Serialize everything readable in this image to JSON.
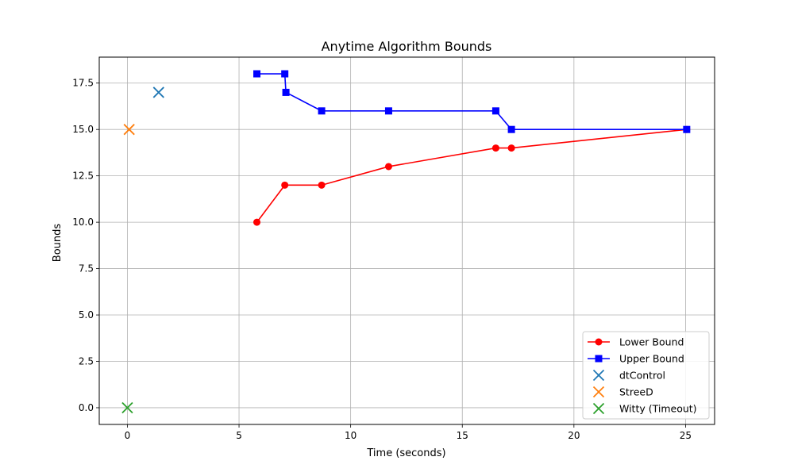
{
  "chart_data": {
    "type": "line",
    "title": "Anytime Algorithm Bounds",
    "xlabel": "Time (seconds)",
    "ylabel": "Bounds",
    "xlim": [
      -1.26,
      26.3
    ],
    "ylim": [
      -0.9,
      18.9
    ],
    "xticks": [
      0,
      5,
      10,
      15,
      20,
      25
    ],
    "yticks": [
      0.0,
      2.5,
      5.0,
      7.5,
      10.0,
      12.5,
      15.0,
      17.5
    ],
    "xtick_labels": [
      "0",
      "5",
      "10",
      "15",
      "20",
      "25"
    ],
    "ytick_labels": [
      "0.0",
      "2.5",
      "5.0",
      "7.5",
      "10.0",
      "12.5",
      "15.0",
      "17.5"
    ],
    "grid": true,
    "legend_position": "lower-right",
    "series": [
      {
        "name": "Lower Bound",
        "kind": "line",
        "marker": "circle",
        "color": "#ff0000",
        "points": [
          [
            5.8,
            10
          ],
          [
            7.05,
            12
          ],
          [
            8.7,
            12
          ],
          [
            11.7,
            13
          ],
          [
            16.5,
            14
          ],
          [
            17.2,
            14
          ],
          [
            25.05,
            15
          ]
        ]
      },
      {
        "name": "Upper Bound",
        "kind": "line",
        "marker": "square",
        "color": "#0000ff",
        "points": [
          [
            5.8,
            18
          ],
          [
            7.05,
            18
          ],
          [
            7.1,
            17
          ],
          [
            8.7,
            16
          ],
          [
            11.7,
            16
          ],
          [
            16.5,
            16
          ],
          [
            17.2,
            15
          ],
          [
            25.05,
            15
          ]
        ]
      },
      {
        "name": "dtControl",
        "kind": "scatter",
        "marker": "x",
        "color": "#1f77b4",
        "points": [
          [
            1.4,
            17
          ]
        ]
      },
      {
        "name": "StreeD",
        "kind": "scatter",
        "marker": "x",
        "color": "#ff7f0e",
        "points": [
          [
            0.08,
            15
          ]
        ]
      },
      {
        "name": "Witty (Timeout)",
        "kind": "scatter",
        "marker": "x",
        "color": "#2ca02c",
        "points": [
          [
            0.0,
            0
          ]
        ]
      }
    ]
  }
}
